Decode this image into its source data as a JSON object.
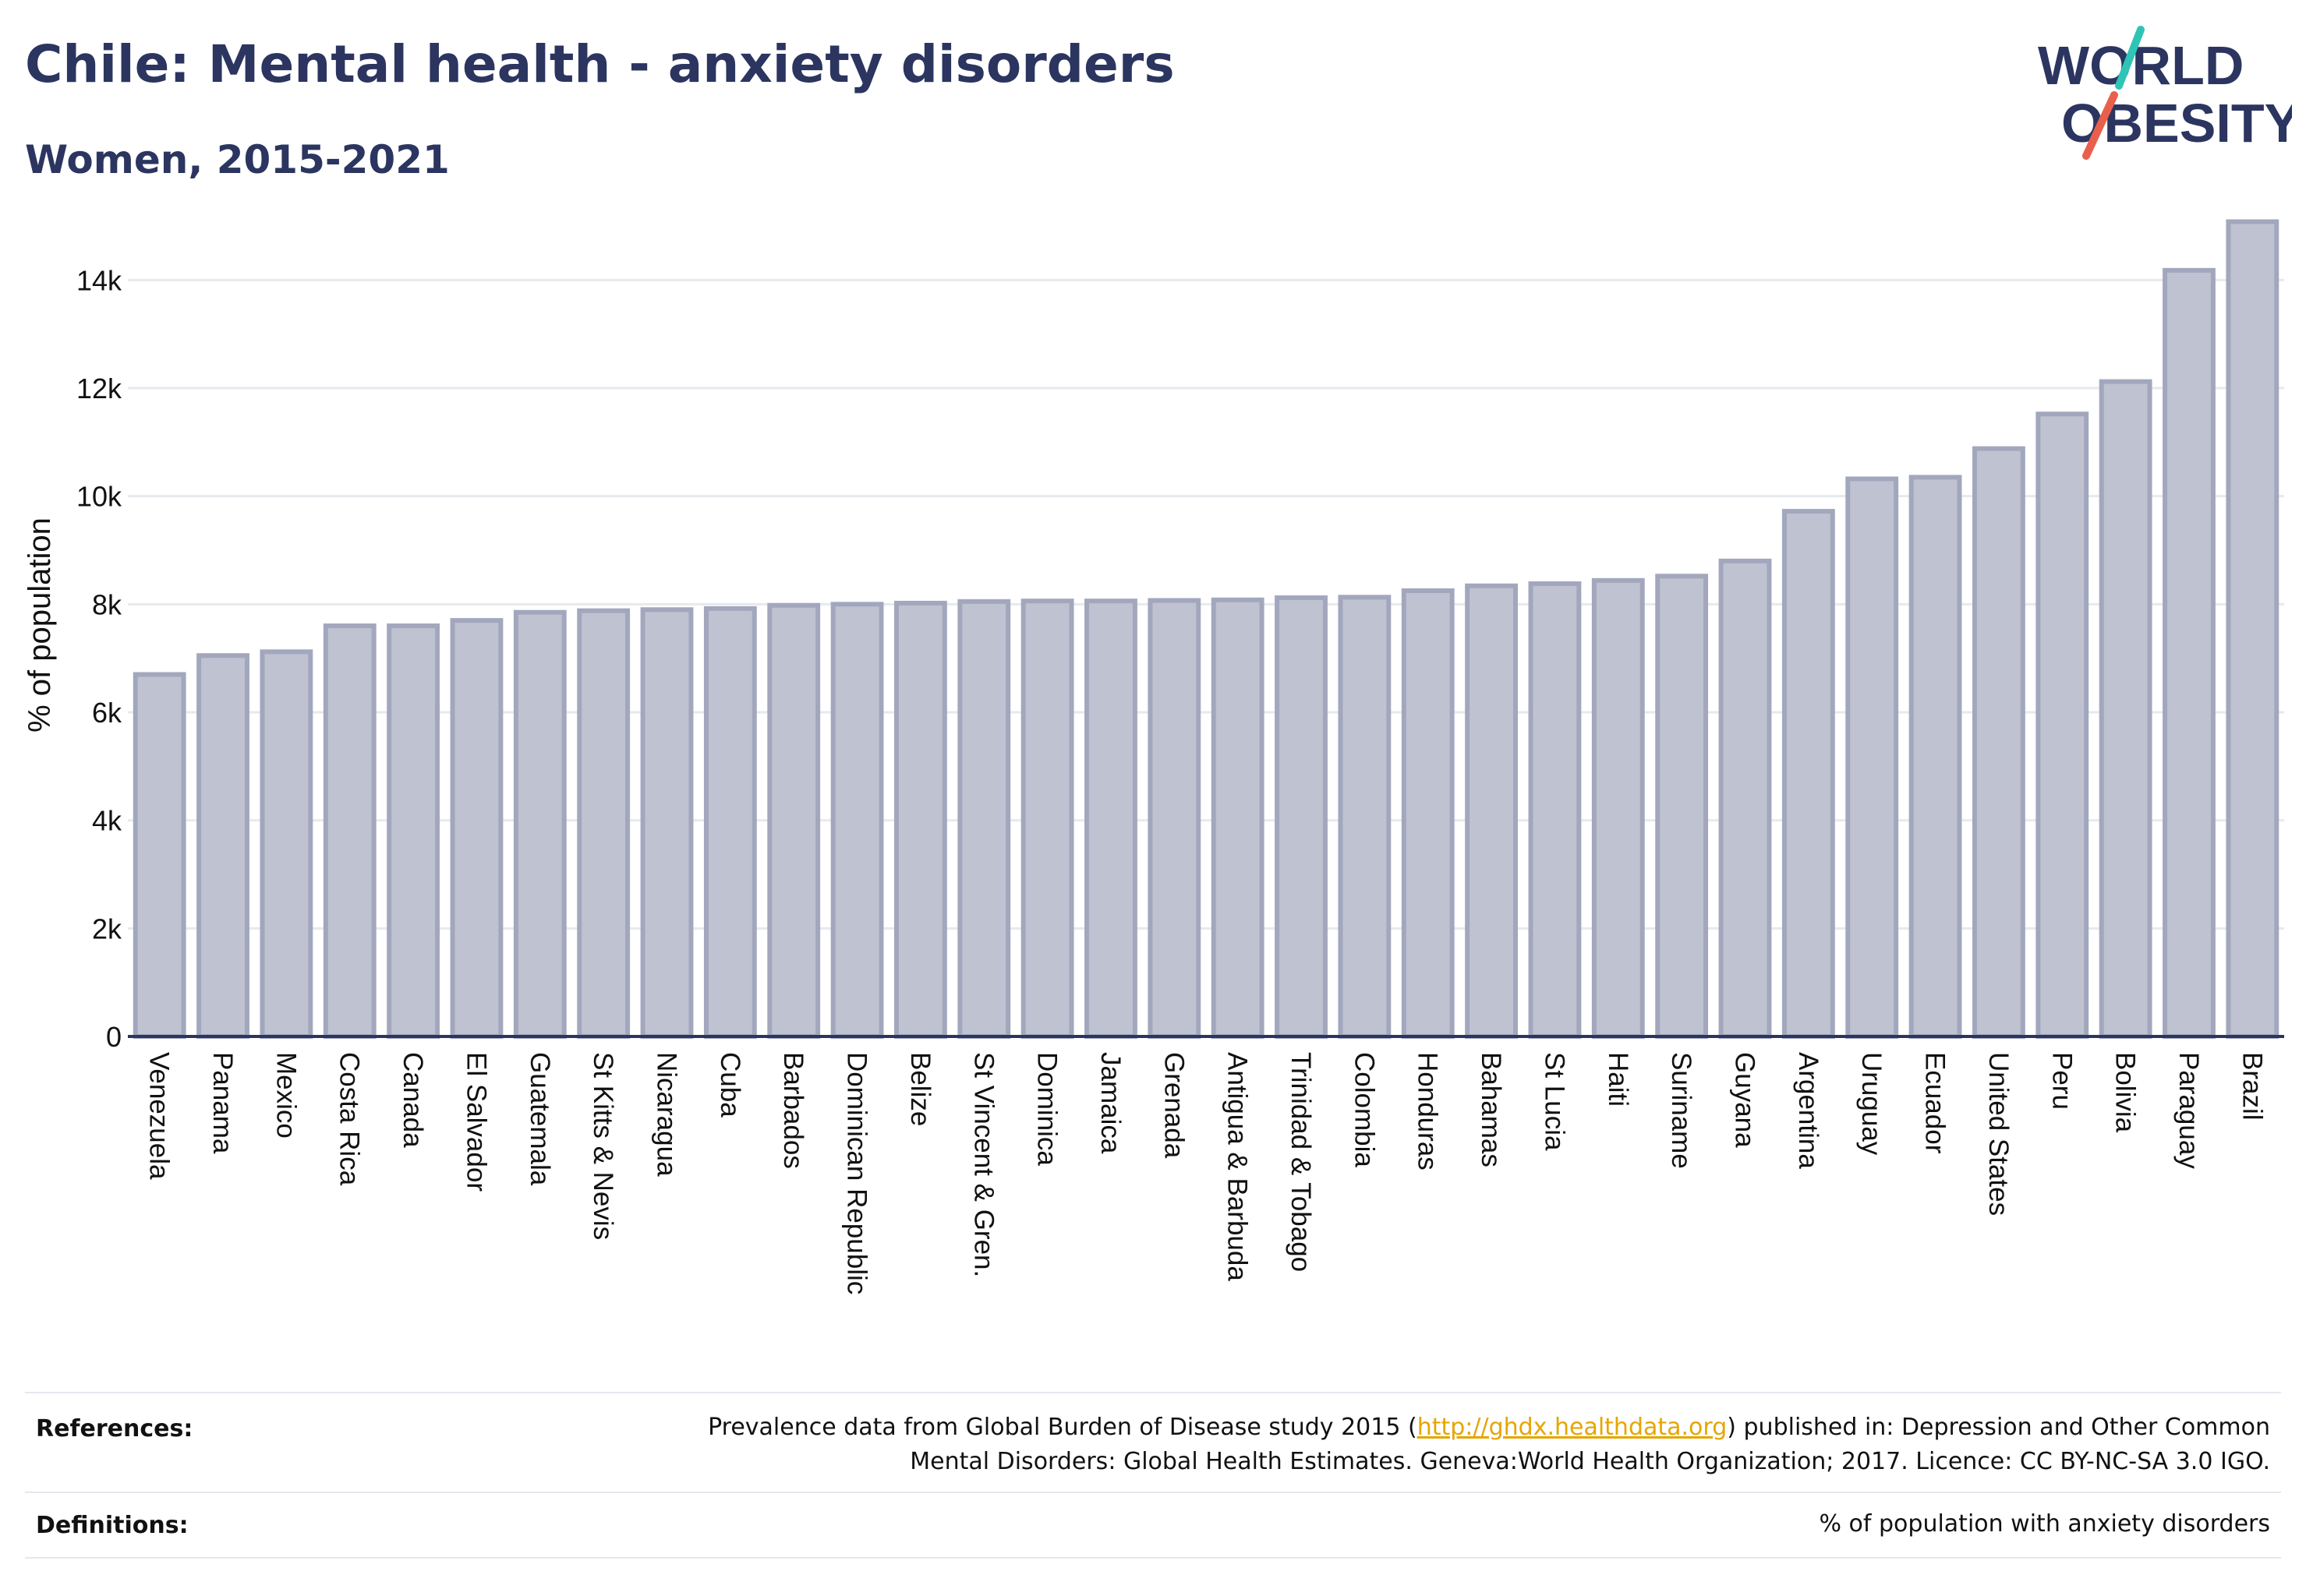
{
  "header": {
    "title": "Chile: Mental health - anxiety disorders",
    "subtitle": "Women, 2015-2021"
  },
  "logo": {
    "line1": "WORLD",
    "line2": "OBESITY",
    "accent_teal": "#2ec4b6",
    "accent_red": "#e8604c"
  },
  "colors": {
    "bar_fill": "#bfc2d0",
    "bar_stroke": "#a2a7bd",
    "axis": "#2b3560",
    "grid": "#e7e9ef"
  },
  "chart_data": {
    "type": "bar",
    "title": "",
    "xlabel": "",
    "ylabel": "% of population",
    "ylim": [
      0,
      15000
    ],
    "yticks": [
      0,
      2000,
      4000,
      6000,
      8000,
      10000,
      12000,
      14000
    ],
    "ytick_labels": [
      "0",
      "2k",
      "4k",
      "6k",
      "8k",
      "10k",
      "12k",
      "14k"
    ],
    "grid": true,
    "categories": [
      "Venezuela",
      "Panama",
      "Mexico",
      "Costa Rica",
      "Canada",
      "El Salvador",
      "Guatemala",
      "St Kitts & Nevis",
      "Nicaragua",
      "Cuba",
      "Barbados",
      "Dominican Republic",
      "Belize",
      "St Vincent & Gren.",
      "Dominica",
      "Jamaica",
      "Grenada",
      "Antigua & Barbuda",
      "Trinidad & Tobago",
      "Colombia",
      "Honduras",
      "Bahamas",
      "St Lucia",
      "Haiti",
      "Suriname",
      "Guyana",
      "Argentina",
      "Uruguay",
      "Ecuador",
      "United States",
      "Peru",
      "Bolivia",
      "Paraguay",
      "Brazil"
    ],
    "values": [
      6700,
      7050,
      7120,
      7600,
      7600,
      7700,
      7850,
      7880,
      7900,
      7920,
      7980,
      8000,
      8020,
      8050,
      8060,
      8060,
      8070,
      8080,
      8120,
      8130,
      8250,
      8340,
      8380,
      8440,
      8520,
      8800,
      9720,
      10320,
      10350,
      10880,
      11520,
      12120,
      14180,
      15080
    ]
  },
  "footer": {
    "references_label": "References:",
    "references_line1_pre": "Prevalence data from Global Burden of Disease study 2015 (",
    "references_link": "http://ghdx.healthdata.org",
    "references_line1_post": ") published in: Depression and Other Common",
    "references_line2": "Mental Disorders: Global Health Estimates. Geneva:World Health Organization; 2017. Licence: CC BY-NC-SA 3.0 IGO.",
    "definitions_label": "Definitions:",
    "definitions_text": "% of population with anxiety disorders"
  }
}
